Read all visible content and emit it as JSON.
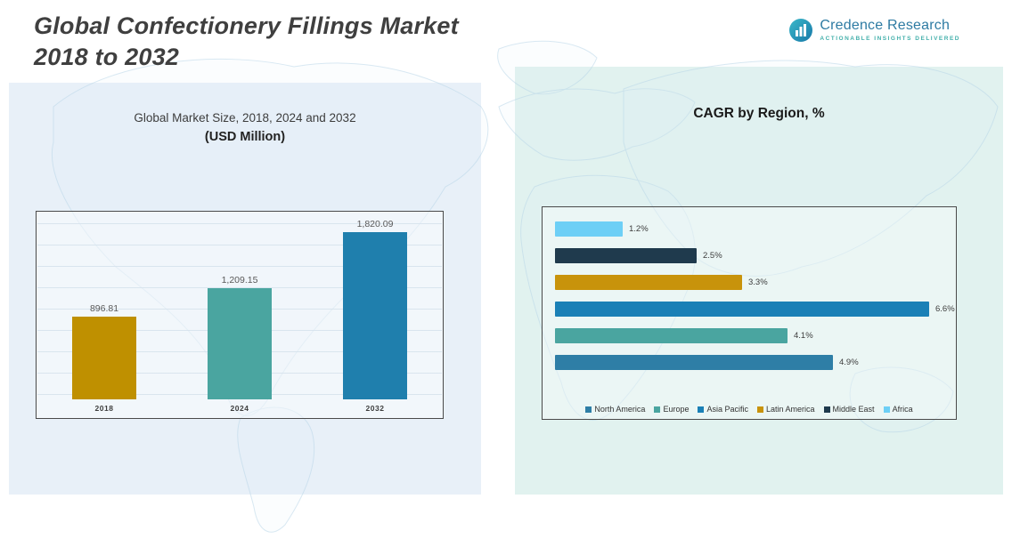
{
  "header": {
    "title_line1": "Global Confectionery Fillings Market",
    "title_line2": "2018 to 2032"
  },
  "logo": {
    "name": "Credence Research",
    "tagline": "Actionable Insights Delivered"
  },
  "left_chart": {
    "title": "Global Market Size, 2018, 2024 and 2032",
    "subtitle": "(USD Million)"
  },
  "right_chart": {
    "title": "CAGR by Region, %"
  },
  "chart_data": [
    {
      "type": "bar",
      "title": "Global Market Size, 2018, 2024 and 2032 (USD Million)",
      "categories": [
        "2018",
        "2024",
        "2032"
      ],
      "values": [
        896.81,
        1209.15,
        1820.09
      ],
      "labels": [
        "896.81",
        "1,209.15",
        "1,820.09"
      ],
      "colors": [
        "#bf9000",
        "#4aa5a0",
        "#1f7fad"
      ],
      "ylim": [
        0,
        1820.09
      ],
      "grid": true,
      "legend_position": "none"
    },
    {
      "type": "bar-horizontal",
      "title": "CAGR by Region, %",
      "series": [
        {
          "name": "Africa",
          "value": 1.2,
          "label": "1.2%",
          "color": "#6dcff6"
        },
        {
          "name": "Middle East",
          "value": 2.5,
          "label": "2.5%",
          "color": "#1f3a4d"
        },
        {
          "name": "Latin America",
          "value": 3.3,
          "label": "3.3%",
          "color": "#c8930b"
        },
        {
          "name": "Asia Pacific",
          "value": 6.6,
          "label": "6.6%",
          "color": "#1a80b6"
        },
        {
          "name": "Europe",
          "value": 4.1,
          "label": "4.1%",
          "color": "#4aa5a0"
        },
        {
          "name": "North America",
          "value": 4.9,
          "label": "4.9%",
          "color": "#2e7ea6"
        }
      ],
      "xlim": [
        0,
        7
      ],
      "grid": false,
      "legend_position": "bottom",
      "legend": [
        {
          "label": "North America",
          "color": "#2e7ea6"
        },
        {
          "label": "Europe",
          "color": "#4aa5a0"
        },
        {
          "label": "Asia Pacific",
          "color": "#1a80b6"
        },
        {
          "label": "Latin America",
          "color": "#c8930b"
        },
        {
          "label": "Middle East",
          "color": "#1f3a4d"
        },
        {
          "label": "Africa",
          "color": "#6dcff6"
        }
      ]
    }
  ]
}
